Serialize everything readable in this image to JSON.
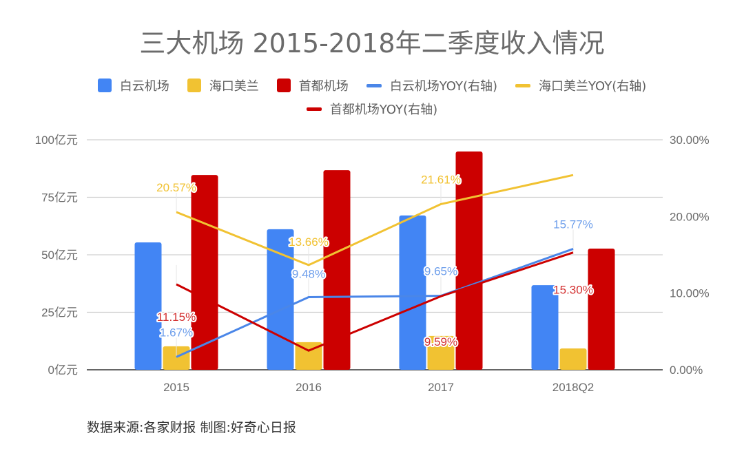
{
  "chart_data": {
    "type": "bar",
    "title": "三大机场 2015-2018年二季度收入情况",
    "categories": [
      "2015",
      "2016",
      "2017",
      "2018Q2"
    ],
    "xlabel": "",
    "ylabel": "",
    "y_left": {
      "range": [
        0,
        100
      ],
      "ticks": [
        0,
        25,
        50,
        75,
        100
      ],
      "tick_labels": [
        "0亿元",
        "25亿元",
        "50亿元",
        "75亿元",
        "100亿元"
      ]
    },
    "y_right": {
      "range": [
        0,
        30
      ],
      "ticks": [
        0,
        10,
        20,
        30
      ],
      "tick_labels": [
        "0.00%",
        "10.00%",
        "20.00%",
        "30.00%"
      ]
    },
    "grid": true,
    "legend_position": "top",
    "bar_series": [
      {
        "name": "白云机场",
        "color": "#4285F4",
        "values": [
          55.4,
          61.1,
          67.1,
          36.8
        ]
      },
      {
        "name": "海口美兰",
        "color": "#F1C232",
        "values": [
          10.2,
          12.0,
          14.7,
          9.3
        ]
      },
      {
        "name": "首都机场",
        "color": "#CC0000",
        "values": [
          84.7,
          86.8,
          94.9,
          52.7
        ]
      }
    ],
    "line_series": [
      {
        "name": "白云机场YOY(右轴)",
        "color": "#4A86E8",
        "label_color": "#6D9EEB",
        "axis": "right",
        "values": [
          1.67,
          9.48,
          9.65,
          15.77
        ],
        "labels": [
          "1.67%",
          "9.48%",
          "9.65%",
          "15.77%"
        ]
      },
      {
        "name": "海口美兰YOY(右轴)",
        "color": "#F1C232",
        "label_color": "#F1C232",
        "axis": "right",
        "values": [
          20.57,
          13.66,
          21.61,
          25.4
        ],
        "labels": [
          "20.57%",
          "13.66%",
          "21.61%",
          null
        ]
      },
      {
        "name": "首都机场YOY(右轴)",
        "color": "#CC0000",
        "label_color": "#D32F2F",
        "axis": "right",
        "values": [
          11.15,
          2.5,
          9.59,
          15.3
        ],
        "labels": [
          "11.15%",
          null,
          "9.59%",
          "15.30%"
        ]
      }
    ],
    "legend": [
      {
        "name": "白云机场",
        "kind": "box",
        "color": "#4285F4"
      },
      {
        "name": "海口美兰",
        "kind": "box",
        "color": "#F1C232"
      },
      {
        "name": "首都机场",
        "kind": "box",
        "color": "#CC0000"
      },
      {
        "name": "白云机场YOY(右轴)",
        "kind": "line",
        "color": "#4A86E8"
      },
      {
        "name": "海口美兰YOY(右轴)",
        "kind": "line",
        "color": "#F1C232"
      },
      {
        "name": "首都机场YOY(右轴)",
        "kind": "line",
        "color": "#CC0000"
      }
    ]
  },
  "footer": {
    "source": "数据来源:各家财报  制图:好奇心日报"
  }
}
